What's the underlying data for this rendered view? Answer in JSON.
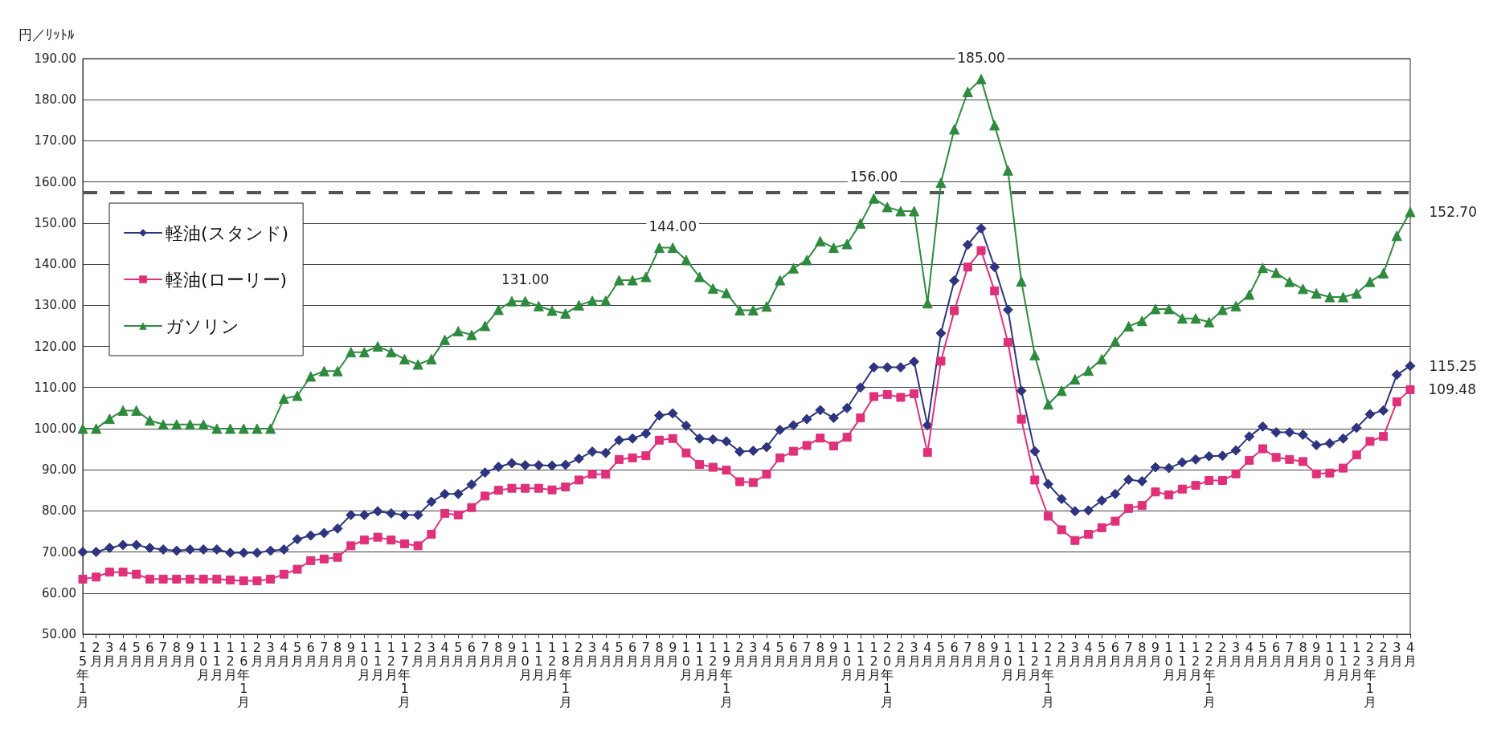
{
  "chart_data": {
    "type": "line",
    "ylabel": "円／ﾘｯﾄﾙ",
    "categories": [
      "15年1月",
      "2月",
      "3月",
      "4月",
      "5月",
      "6月",
      "7月",
      "8月",
      "9月",
      "10月",
      "11月",
      "12月",
      "16年1月",
      "2月",
      "3月",
      "4月",
      "5月",
      "6月",
      "7月",
      "8月",
      "9月",
      "10月",
      "11月",
      "12月",
      "17年1月",
      "2月",
      "3月",
      "4月",
      "5月",
      "6月",
      "7月",
      "8月",
      "9月",
      "10月",
      "11月",
      "12月",
      "18年1月",
      "2月",
      "3月",
      "4月",
      "5月",
      "6月",
      "7月",
      "8月",
      "9月",
      "10月",
      "11月",
      "12月",
      "19年1月",
      "2月",
      "3月",
      "4月",
      "5月",
      "6月",
      "7月",
      "8月",
      "9月",
      "10月",
      "11月",
      "12月",
      "20年1月",
      "2月",
      "3月",
      "4月",
      "5月",
      "6月",
      "7月",
      "8月",
      "9月",
      "10月",
      "11月",
      "12月",
      "21年1月",
      "2月",
      "3月",
      "4月",
      "5月",
      "6月",
      "7月",
      "8月",
      "9月",
      "10月",
      "11月",
      "12月",
      "22年1月",
      "2月",
      "3月",
      "4月",
      "5月",
      "6月",
      "7月",
      "8月",
      "9月",
      "10月",
      "11月",
      "12月",
      "23年1月",
      "2月",
      "3月",
      "4月"
    ],
    "series": [
      {
        "name": "軽油(スタンド)",
        "color": "#2e3580",
        "marker": "diamond",
        "values": [
          70,
          70,
          71,
          71.7,
          71.7,
          71,
          70.6,
          70.3,
          70.6,
          70.6,
          70.6,
          69.8,
          69.8,
          69.8,
          70.3,
          70.6,
          73.1,
          74,
          74.6,
          75.7,
          79,
          79,
          79.9,
          79.4,
          79,
          79,
          82.2,
          84.1,
          84.1,
          86.4,
          89.3,
          90.7,
          91.6,
          91.1,
          91.1,
          91,
          91.2,
          92.7,
          94.4,
          94.1,
          97.2,
          97.6,
          98.8,
          103.2,
          103.7,
          100.7,
          97.6,
          97.4,
          96.9,
          94.4,
          94.6,
          95.5,
          99.7,
          100.8,
          102.3,
          104.5,
          102.6,
          105,
          110,
          114.9,
          114.9,
          114.9,
          116.3,
          100.8,
          123.2,
          136,
          144.7,
          148.7,
          139.3,
          128.9,
          109.2,
          94.5,
          86.5,
          82.9,
          79.9,
          80.1,
          82.5,
          84.1,
          87.6,
          87.2,
          90.6,
          90.4,
          91.8,
          92.5,
          93.3,
          93.4,
          94.7,
          98.1,
          100.5,
          99.1,
          99.1,
          98.5,
          96,
          96.4,
          97.6,
          100.2,
          103.5,
          104.4,
          113.1,
          115.25
        ],
        "value_labels": [
          null,
          null,
          null,
          null,
          null,
          null,
          null,
          null,
          null,
          null,
          null,
          null,
          null,
          null,
          null,
          null,
          null,
          null,
          null,
          null,
          null,
          null,
          null,
          null,
          null,
          null,
          null,
          null,
          null,
          null,
          null,
          null,
          null,
          null,
          null,
          null,
          null,
          null,
          null,
          null,
          null,
          null,
          null,
          null,
          null,
          null,
          null,
          null,
          null,
          null,
          null,
          null,
          null,
          null,
          null,
          null,
          null,
          null,
          null,
          null,
          null,
          null,
          null,
          null,
          null,
          null,
          null,
          null,
          null,
          null,
          null,
          null,
          null,
          null,
          null,
          null,
          null,
          null,
          null,
          null,
          null,
          null,
          null,
          null,
          null,
          null,
          null,
          null,
          null,
          null,
          null,
          null,
          null,
          null,
          null,
          null,
          null,
          null,
          null,
          "115.25"
        ]
      },
      {
        "name": "軽油(ローリー)",
        "color": "#e0307a",
        "marker": "square",
        "values": [
          63.4,
          63.9,
          65.1,
          65.1,
          64.6,
          63.4,
          63.4,
          63.4,
          63.4,
          63.4,
          63.4,
          63.2,
          63,
          63,
          63.4,
          64.6,
          65.8,
          67.9,
          68.3,
          68.7,
          71.5,
          72.9,
          73.6,
          72.9,
          72,
          71.5,
          74.3,
          79.4,
          79,
          80.8,
          83.6,
          85,
          85.5,
          85.5,
          85.5,
          85.1,
          85.8,
          87.5,
          88.9,
          88.9,
          92.5,
          92.9,
          93.4,
          97.2,
          97.6,
          94.1,
          91.3,
          90.6,
          89.9,
          87.1,
          86.9,
          88.9,
          92.9,
          94.5,
          95.9,
          97.7,
          95.8,
          97.9,
          102.6,
          107.8,
          108.3,
          107.6,
          108.5,
          94.2,
          116.4,
          128.7,
          139.3,
          143.3,
          133.5,
          121,
          102.3,
          87.5,
          78.7,
          75.4,
          72.8,
          74.3,
          75.9,
          77.5,
          80.6,
          81.3,
          84.6,
          83.9,
          85.3,
          86.2,
          87.4,
          87.4,
          89,
          92.3,
          95.1,
          93,
          92.5,
          92,
          89,
          89.2,
          90.4,
          93.6,
          96.9,
          98.1,
          106.5,
          109.48
        ],
        "value_labels": [
          null,
          null,
          null,
          null,
          null,
          null,
          null,
          null,
          null,
          null,
          null,
          null,
          null,
          null,
          null,
          null,
          null,
          null,
          null,
          null,
          null,
          null,
          null,
          null,
          null,
          null,
          null,
          null,
          null,
          null,
          null,
          null,
          null,
          null,
          null,
          null,
          null,
          null,
          null,
          null,
          null,
          null,
          null,
          null,
          null,
          null,
          null,
          null,
          null,
          null,
          null,
          null,
          null,
          null,
          null,
          null,
          null,
          null,
          null,
          null,
          null,
          null,
          null,
          null,
          null,
          null,
          null,
          null,
          null,
          null,
          null,
          null,
          null,
          null,
          null,
          null,
          null,
          null,
          null,
          null,
          null,
          null,
          null,
          null,
          null,
          null,
          null,
          null,
          null,
          null,
          null,
          null,
          null,
          null,
          null,
          null,
          null,
          null,
          null,
          "109.48"
        ]
      },
      {
        "name": "ガソリン",
        "color": "#2e8b3e",
        "marker": "triangle",
        "values": [
          100,
          100,
          102.4,
          104.4,
          104.4,
          102,
          101,
          101,
          101,
          101,
          100,
          100,
          100,
          100,
          100,
          107.3,
          108,
          112.7,
          114,
          114,
          118.6,
          118.6,
          120,
          118.6,
          116.9,
          115.6,
          116.9,
          121.6,
          123.7,
          122.8,
          125,
          128.9,
          131,
          131,
          129.8,
          128.7,
          128,
          130,
          131.1,
          131.1,
          136.1,
          136.1,
          136.9,
          144,
          144,
          141,
          136.9,
          134.1,
          133,
          128.8,
          128.8,
          129.7,
          136.1,
          139,
          141,
          145.6,
          144,
          144.9,
          149.9,
          156,
          153.9,
          152.9,
          152.9,
          130.5,
          159.8,
          172.8,
          181.9,
          185,
          173.8,
          162.8,
          135.8,
          117.9,
          105.9,
          109.2,
          112,
          114.1,
          116.9,
          121.2,
          124.9,
          126.2,
          129.1,
          129.1,
          126.8,
          126.8,
          125.9,
          128.9,
          129.8,
          132.6,
          139.1,
          137.9,
          135.7,
          134,
          132.9,
          132,
          132,
          132.9,
          135.7,
          137.8,
          146.9,
          152.7
        ],
        "value_labels": [
          null,
          null,
          null,
          null,
          null,
          null,
          null,
          null,
          null,
          null,
          null,
          null,
          null,
          null,
          null,
          null,
          null,
          null,
          null,
          null,
          null,
          null,
          null,
          null,
          null,
          null,
          null,
          null,
          null,
          null,
          null,
          null,
          null,
          "131.00",
          null,
          null,
          null,
          null,
          null,
          null,
          null,
          null,
          null,
          null,
          "144.00",
          null,
          null,
          null,
          null,
          null,
          null,
          null,
          null,
          null,
          null,
          null,
          null,
          null,
          null,
          "156.00",
          null,
          null,
          null,
          null,
          null,
          null,
          null,
          "185.00",
          null,
          null,
          null,
          null,
          null,
          null,
          null,
          null,
          null,
          null,
          null,
          null,
          null,
          null,
          null,
          null,
          null,
          null,
          null,
          null,
          null,
          null,
          null,
          null,
          null,
          null,
          null,
          null,
          null,
          null,
          null,
          "152.70"
        ]
      }
    ],
    "ylim": [
      50,
      190
    ],
    "yticks": [
      {
        "value": 50,
        "label": "50.00"
      },
      {
        "value": 60,
        "label": "60.00"
      },
      {
        "value": 70,
        "label": "70.00"
      },
      {
        "value": 80,
        "label": "80.00"
      },
      {
        "value": 90,
        "label": "90.00"
      },
      {
        "value": 100,
        "label": "100.00"
      },
      {
        "value": 110,
        "label": "110.00"
      },
      {
        "value": 120,
        "label": "120.00"
      },
      {
        "value": 130,
        "label": "130.00"
      },
      {
        "value": 140,
        "label": "140.00"
      },
      {
        "value": 150,
        "label": "150.00"
      },
      {
        "value": 160,
        "label": "160.00"
      },
      {
        "value": 170,
        "label": "170.00"
      },
      {
        "value": 180,
        "label": "180.00"
      },
      {
        "value": 190,
        "label": "190.00"
      }
    ],
    "ref_lines": [
      {
        "axis": "y",
        "value": 157.5,
        "color": "#555555",
        "line_style": "dashed"
      }
    ],
    "grid": "y",
    "legend": "top left",
    "line_style": "solid"
  }
}
